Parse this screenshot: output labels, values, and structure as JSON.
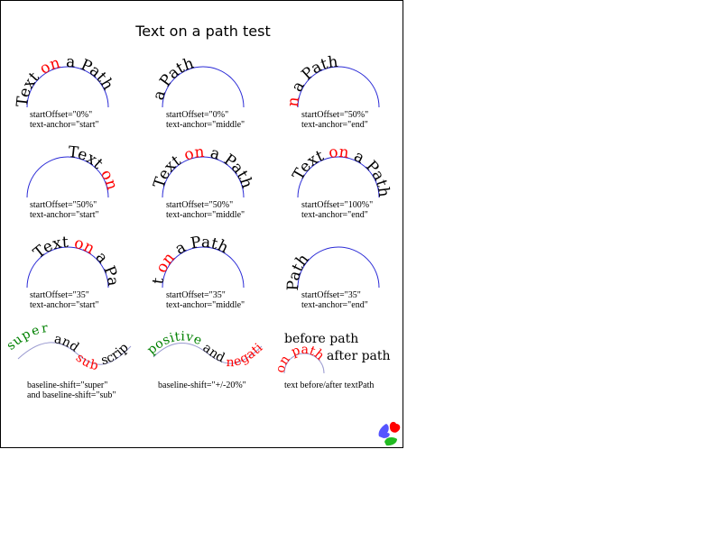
{
  "title": "Text on a path test",
  "words": {
    "text": "Text ",
    "on": "on",
    "a_path": " a Path"
  },
  "colors": {
    "frame": "#000000",
    "arc": "#2a2ad6",
    "wave": "#9a9ad0",
    "highlight": "#ff0000",
    "green": "#008000",
    "logo_blue": "#5555ff",
    "logo_red": "#ff0000",
    "logo_green": "#22bb22"
  },
  "cells": [
    {
      "label1": "startOffset=\"0%\"",
      "label2": "text-anchor=\"start\""
    },
    {
      "label1": "startOffset=\"0%\"",
      "label2": "text-anchor=\"middle\""
    },
    {
      "label1": "startOffset=\"50%\"",
      "label2": "text-anchor=\"end\""
    },
    {
      "label1": "startOffset=\"50%\"",
      "label2": "text-anchor=\"start\""
    },
    {
      "label1": "startOffset=\"50%\"",
      "label2": "text-anchor=\"middle\""
    },
    {
      "label1": "startOffset=\"100%\"",
      "label2": "text-anchor=\"end\""
    },
    {
      "label1": "startOffset=\"35\"",
      "label2": "text-anchor=\"start\""
    },
    {
      "label1": "startOffset=\"35\"",
      "label2": "text-anchor=\"middle\""
    },
    {
      "label1": "startOffset=\"35\"",
      "label2": "text-anchor=\"end\""
    }
  ],
  "shift1": {
    "w1": "super",
    "w2": " and ",
    "w3": "sub",
    "w4": " scripts",
    "label1": "baseline-shift=\"super\"",
    "label2": "and baseline-shift=\"sub\""
  },
  "shift2": {
    "w1": "positive",
    "w2": " and ",
    "w3": "negative",
    "label1": "baseline-shift=\"+/-20%\""
  },
  "before_after": {
    "before": "before path",
    "on_path": "on path",
    "after": "after path",
    "label1": "text before/after textPath"
  },
  "logo_icon": "batik-splash-icon"
}
